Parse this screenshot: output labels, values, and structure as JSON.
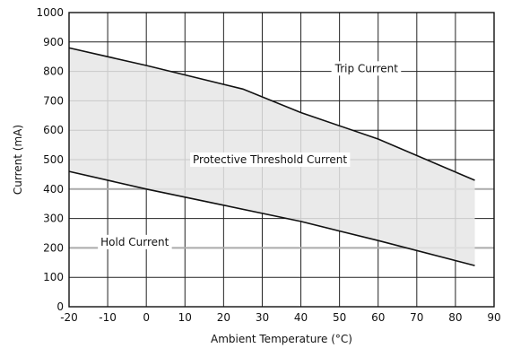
{
  "chart_data": {
    "type": "area",
    "xlabel": "Ambient Temperature (°C)",
    "ylabel": "Current (mA)",
    "xlim": [
      -20,
      90
    ],
    "ylim": [
      0,
      1000
    ],
    "x_ticks": [
      -20,
      -10,
      0,
      10,
      20,
      30,
      40,
      50,
      60,
      70,
      80,
      90
    ],
    "y_ticks": [
      0,
      100,
      200,
      300,
      400,
      500,
      600,
      700,
      800,
      900,
      1000
    ],
    "grid": true,
    "fill_color": "#e6e6e6",
    "line_color": "#111111",
    "series": [
      {
        "name": "Trip Current",
        "x": [
          -20,
          0,
          25,
          40,
          60,
          85
        ],
        "y": [
          880,
          820,
          740,
          660,
          570,
          430
        ]
      },
      {
        "name": "Hold Current",
        "x": [
          -20,
          0,
          20,
          40,
          60,
          85
        ],
        "y": [
          460,
          400,
          345,
          290,
          225,
          140
        ]
      }
    ],
    "annotations": [
      {
        "text": "Trip Current",
        "x": 57,
        "y": 810
      },
      {
        "text": "Protective Threshold Current",
        "x": 32,
        "y": 500
      },
      {
        "text": "Hold Current",
        "x": -3,
        "y": 220
      }
    ]
  }
}
